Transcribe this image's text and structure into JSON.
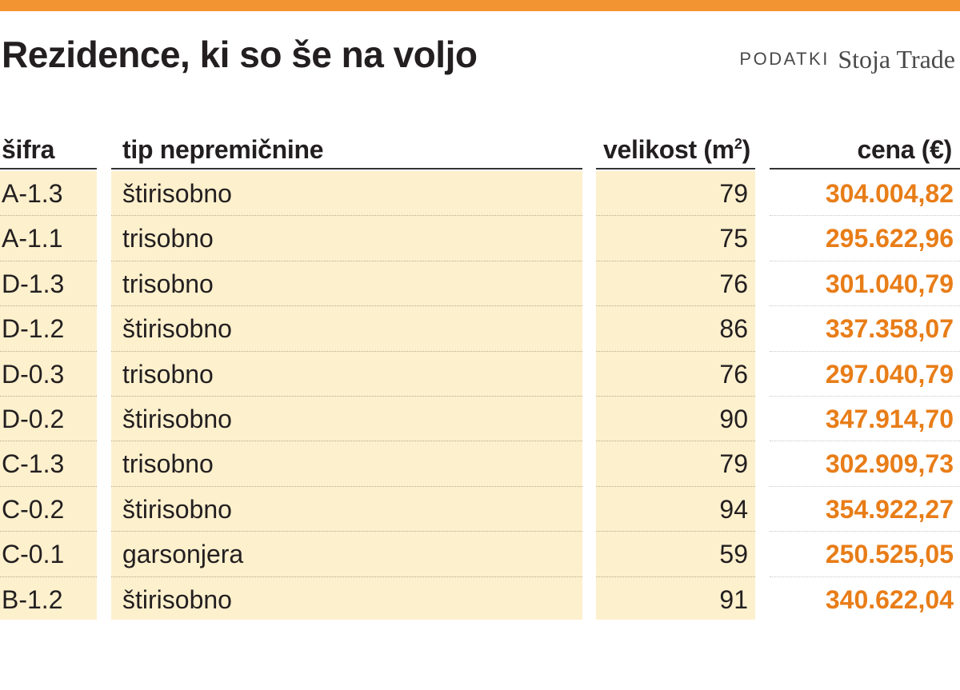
{
  "header": {
    "title": "Rezidence, ki so še na voljo",
    "source_label": "PODATKI",
    "source_name": "Stoja Trade"
  },
  "colors": {
    "accent_bar": "#f39433",
    "price_text": "#e87d18",
    "column_fill": "#fdf0cd"
  },
  "chart_data": {
    "type": "table",
    "title": "Rezidence, ki so še na voljo",
    "columns": [
      "šifra",
      "tip nepremičnine",
      "velikost (m",
      "cena (€)"
    ],
    "size_unit_sup": "2",
    "size_unit_close": ")",
    "rows": [
      {
        "code": "A-1.3",
        "type": "štirisobno",
        "size": "79",
        "price": "304.004,82"
      },
      {
        "code": "A-1.1",
        "type": "trisobno",
        "size": "75",
        "price": "295.622,96"
      },
      {
        "code": "D-1.3",
        "type": "trisobno",
        "size": "76",
        "price": "301.040,79"
      },
      {
        "code": "D-1.2",
        "type": "štirisobno",
        "size": "86",
        "price": "337.358,07"
      },
      {
        "code": "D-0.3",
        "type": "trisobno",
        "size": "76",
        "price": "297.040,79"
      },
      {
        "code": "D-0.2",
        "type": "štirisobno",
        "size": "90",
        "price": "347.914,70"
      },
      {
        "code": "C-1.3",
        "type": "trisobno",
        "size": "79",
        "price": "302.909,73"
      },
      {
        "code": "C-0.2",
        "type": "štirisobno",
        "size": "94",
        "price": "354.922,27"
      },
      {
        "code": "C-0.1",
        "type": "garsonjera",
        "size": "59",
        "price": "250.525,05"
      },
      {
        "code": "B-1.2",
        "type": "štirisobno",
        "size": "91",
        "price": "340.622,04"
      }
    ]
  }
}
